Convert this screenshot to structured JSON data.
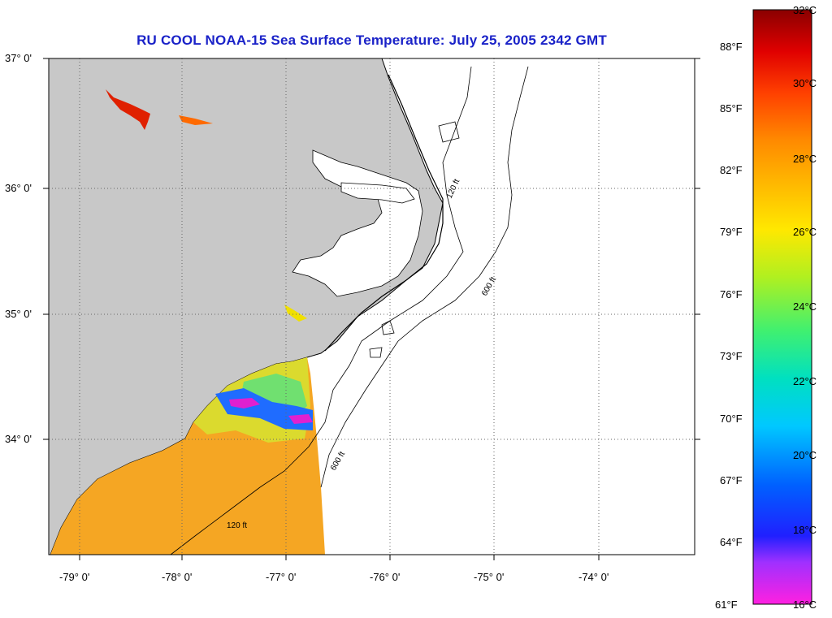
{
  "title": "RU COOL  NOAA-15  Sea Surface Temperature:  July 25, 2005 2342 GMT",
  "lat_labels": [
    "37° 0'",
    "36° 0'",
    "35° 0'",
    "34° 0'"
  ],
  "lon_labels": [
    "-79° 0'",
    "-78° 0'",
    "-77° 0'",
    "-76° 0'",
    "-75° 0'",
    "-74° 0'"
  ],
  "contour_labels": {
    "c120": "120 ft",
    "c600": "600 ft"
  },
  "colorbar": {
    "fahrenheit": [
      "88°F",
      "85°F",
      "82°F",
      "79°F",
      "76°F",
      "73°F",
      "70°F",
      "67°F",
      "64°F",
      "61°F"
    ],
    "celsius": [
      "32°C",
      "30°C",
      "28°C",
      "26°C",
      "24°C",
      "22°C",
      "20°C",
      "18°C",
      "16°C"
    ],
    "range_c": [
      16,
      32
    ],
    "colors": [
      "#ff30e0",
      "#9a30ff",
      "#1010ff",
      "#0a6aff",
      "#00d8ff",
      "#20e0a0",
      "#60f040",
      "#c8f020",
      "#ffe800",
      "#ffb000",
      "#ff8000",
      "#ff4000",
      "#e00000",
      "#8a0000"
    ]
  },
  "colors": {
    "land": "#c8c8c8",
    "ocean": "#ffffff",
    "title": "#1a22c8",
    "sst_warm": "#f5a623"
  }
}
